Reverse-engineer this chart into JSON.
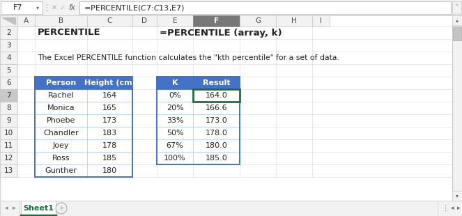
{
  "formula_bar_cell": "F7",
  "formula_bar_formula": "=PERCENTILE($C$7:$C$13,E7)",
  "title1": "PERCENTILE",
  "title2": "=PERCENTILE (array, k)",
  "subtitle": "The Excel PERCENTILE function calculates the \"kth percentile\" for a set of data.",
  "table1_headers": [
    "Person",
    "Height (cm)"
  ],
  "table1_rows": [
    [
      "Rachel",
      "164"
    ],
    [
      "Monica",
      "165"
    ],
    [
      "Phoebe",
      "173"
    ],
    [
      "Chandler",
      "183"
    ],
    [
      "Joey",
      "178"
    ],
    [
      "Ross",
      "185"
    ],
    [
      "Gunther",
      "180"
    ]
  ],
  "table2_headers": [
    "K",
    "Result"
  ],
  "table2_rows": [
    [
      "0%",
      "164.0"
    ],
    [
      "20%",
      "166.6"
    ],
    [
      "33%",
      "173.0"
    ],
    [
      "50%",
      "178.0"
    ],
    [
      "67%",
      "180.0"
    ],
    [
      "100%",
      "185.0"
    ]
  ],
  "header_bg": "#4472C4",
  "header_fg": "#FFFFFF",
  "table_border": "#4472C4",
  "cell_border": "#BDD7EE",
  "selected_cell_border": "#1F6C3A",
  "col_header_selected_bg": "#787878",
  "bg_color": "#F2F2F2",
  "spreadsheet_bg": "#FFFFFF",
  "tab_color": "#1F6C3A",
  "tab_text": "Sheet1",
  "col_labels": [
    "A",
    "B",
    "C",
    "D",
    "E",
    "F",
    "G",
    "H",
    "I"
  ],
  "row_labels": [
    "2",
    "3",
    "4",
    "5",
    "6",
    "7",
    "8",
    "9",
    "10",
    "11",
    "12",
    "13"
  ],
  "figw": 6.63,
  "figh": 3.1,
  "dpi": 100
}
